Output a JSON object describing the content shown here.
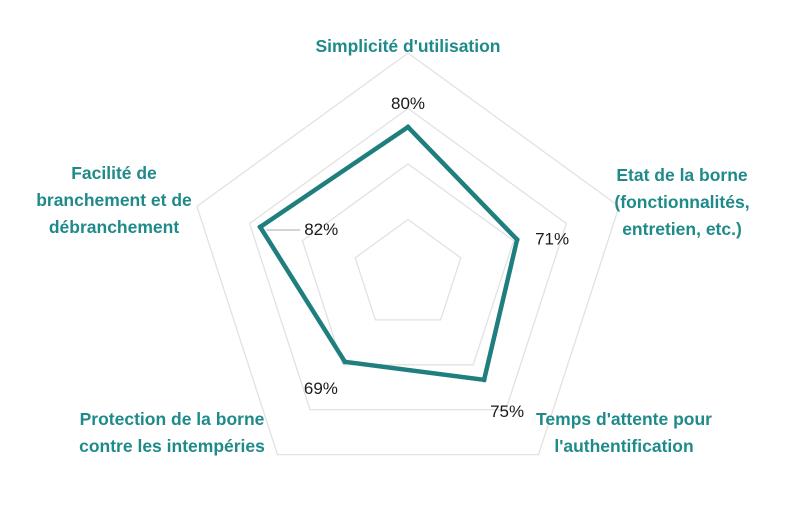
{
  "chart_data": {
    "type": "radar",
    "axes": [
      [
        "Simplicité d'utilisation"
      ],
      [
        "Etat de la borne",
        "(fonctionnalités,",
        "entretien, etc.)"
      ],
      [
        "Temps d'attente pour",
        "l'authentification"
      ],
      [
        "Protection de la borne",
        "contre les intempéries"
      ],
      [
        "Facilité de",
        "branchement et de",
        "débranchement"
      ]
    ],
    "values": [
      80,
      71,
      75,
      69,
      82
    ],
    "value_labels": [
      "80%",
      "71%",
      "75%",
      "69%",
      "82%"
    ],
    "rmin": 40,
    "rmax": 100,
    "grid_levels": 4,
    "grid": true,
    "legend": "none",
    "colors": {
      "series": "#1f7f7f",
      "axis_label": "#1f8a8a",
      "grid": "#e2e2e2",
      "data_label": "#1a1a1a"
    }
  }
}
